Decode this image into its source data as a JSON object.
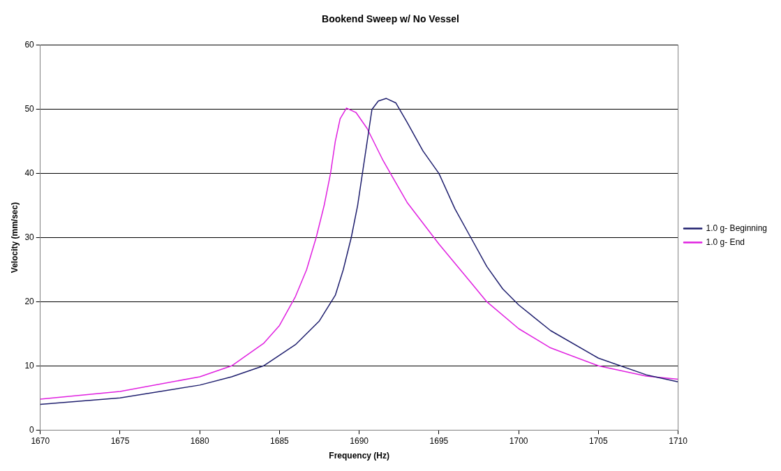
{
  "chart_data": {
    "type": "line",
    "title": "Bookend Sweep w/ No Vessel",
    "xlabel": "Frequency (Hz)",
    "ylabel": "Velocity (mm/sec)",
    "xlim": [
      1670,
      1710
    ],
    "xticks": [
      1670,
      1675,
      1680,
      1685,
      1690,
      1695,
      1700,
      1705,
      1710
    ],
    "ylim": [
      0,
      60
    ],
    "yticks": [
      0,
      10,
      20,
      30,
      40,
      50,
      60
    ],
    "grid": "y",
    "legend": "right",
    "marker": "none",
    "line_style": "solid",
    "series": [
      {
        "name": "1.0 g- Beginning",
        "color": "#1f1f6e",
        "x": [
          1670,
          1675,
          1680,
          1682,
          1684,
          1686,
          1687.5,
          1688.5,
          1689,
          1689.5,
          1689.9,
          1690.2,
          1690.5,
          1690.8,
          1691.2,
          1691.7,
          1692.3,
          1693,
          1694,
          1695,
          1696,
          1697,
          1698,
          1699,
          1700,
          1702,
          1705,
          1708,
          1710
        ],
        "values": [
          4,
          5,
          7,
          8.3,
          10,
          13.3,
          17,
          21,
          25,
          30,
          35,
          40,
          45,
          50,
          51.3,
          51.7,
          51,
          48,
          43.5,
          40,
          34.5,
          30,
          25.5,
          22,
          19.5,
          15.5,
          11.2,
          8.6,
          7.5
        ]
      },
      {
        "name": "1.0 g- End",
        "color": "#e020e0",
        "x": [
          1670,
          1675,
          1680,
          1682,
          1684,
          1685,
          1686,
          1686.7,
          1687.3,
          1687.8,
          1688.2,
          1688.5,
          1688.8,
          1689.2,
          1689.8,
          1690.5,
          1691.5,
          1693,
          1695,
          1697,
          1698,
          1700,
          1702,
          1705,
          1708,
          1710
        ],
        "values": [
          4.8,
          6,
          8.3,
          10,
          13.5,
          16.3,
          20.8,
          25,
          30,
          35,
          40,
          45,
          48.5,
          50.2,
          49.5,
          47,
          42,
          35.5,
          29,
          23,
          20,
          15.8,
          12.8,
          10,
          8.4,
          7.9
        ]
      }
    ]
  }
}
